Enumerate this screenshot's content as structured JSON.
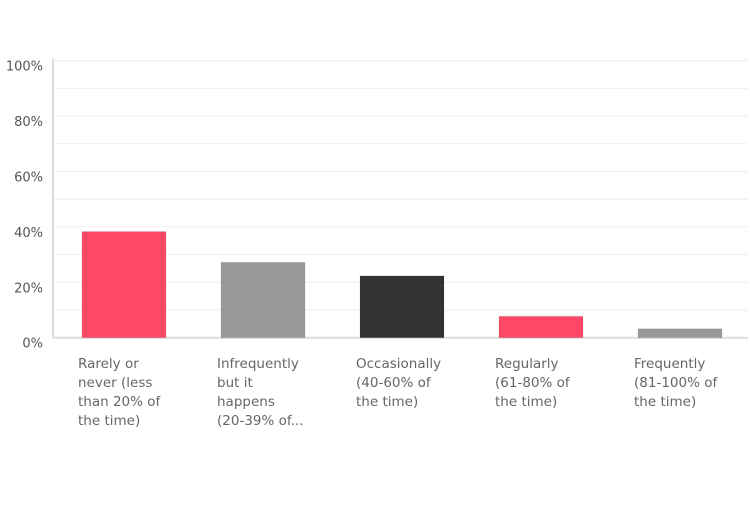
{
  "chart_data": {
    "type": "bar",
    "title": "",
    "xlabel": "",
    "ylabel": "",
    "ylim": [
      0,
      100
    ],
    "yticks": [
      "0%",
      "20%",
      "40%",
      "60%",
      "80%",
      "100%"
    ],
    "grid": true,
    "categories": [
      [
        "Rarely or",
        "never (less",
        "than 20% of",
        "the time)"
      ],
      [
        "Infrequently",
        "but it",
        "happens",
        "(20-39% of..."
      ],
      [
        "Occasionally",
        "(40-60% of",
        "the time)"
      ],
      [
        "Regularly",
        "(61-80% of",
        "the time)"
      ],
      [
        "Frequently",
        "(81-100% of",
        "the time)"
      ]
    ],
    "values": [
      38.3,
      27.2,
      22.3,
      7.7,
      3.2
    ],
    "colors": [
      "#ff4766",
      "#999999",
      "#333333",
      "#ff4766",
      "#999999"
    ]
  }
}
